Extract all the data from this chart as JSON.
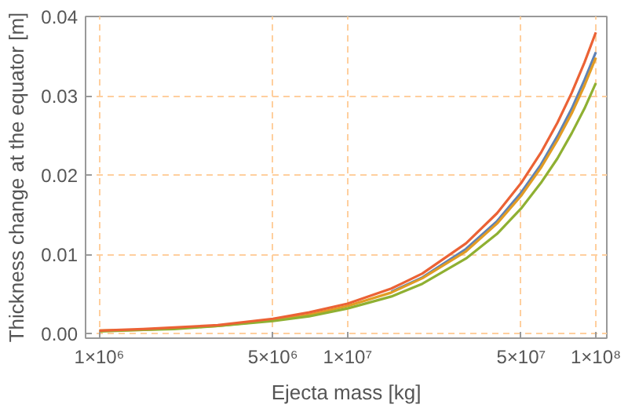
{
  "chart_data": {
    "type": "line",
    "xlabel": "Ejecta mass [kg]",
    "ylabel": "Thickness change at the equator [m]",
    "log": "x",
    "x": [
      1000000,
      1500000,
      2000000,
      3000000,
      5000000,
      7000000,
      10000000,
      15000000,
      20000000,
      30000000,
      40000000,
      50000000,
      60000000,
      70000000,
      80000000,
      90000000,
      100000000
    ],
    "series": [
      {
        "color": "#5e81b5",
        "values": [
          null,
          null,
          null,
          null,
          null,
          null,
          null,
          0.0053,
          0.0071,
          0.0107,
          0.0142,
          0.0178,
          0.0213,
          0.0249,
          0.0284,
          0.032,
          0.0355
        ]
      },
      {
        "color": "#e19c24",
        "values": [
          0.0004,
          0.0005,
          0.0007,
          0.001,
          0.0017,
          0.0024,
          0.0035,
          0.0052,
          0.007,
          0.0104,
          0.0139,
          0.0174,
          0.0209,
          0.0244,
          0.0278,
          0.0313,
          0.0348
        ]
      },
      {
        "color": "#8fb032",
        "values": [
          0.0003,
          0.0005,
          0.0006,
          0.001,
          0.0016,
          0.0022,
          0.0032,
          0.0047,
          0.0063,
          0.0095,
          0.0126,
          0.0158,
          0.019,
          0.0221,
          0.0253,
          0.0284,
          0.0316
        ]
      },
      {
        "color": "#eb6235",
        "values": [
          0.0004,
          0.0006,
          0.0008,
          0.0011,
          0.0019,
          0.0027,
          0.0038,
          0.0057,
          0.0076,
          0.0114,
          0.0152,
          0.019,
          0.0228,
          0.0266,
          0.0304,
          0.0342,
          0.038
        ]
      }
    ],
    "xlim": [
      880000,
      110700000
    ],
    "xticks": [
      {
        "value": 1000000,
        "label": "1×10⁶"
      },
      {
        "value": 5000000,
        "label": "5×10⁶"
      },
      {
        "value": 10000000,
        "label": "1×10⁷"
      },
      {
        "value": 50000000,
        "label": "5×10⁷"
      },
      {
        "value": 100000000,
        "label": "1×10⁸"
      }
    ],
    "ylim": [
      -0.00055,
      0.04
    ],
    "yticks": [
      {
        "value": 0,
        "label": "0.00"
      },
      {
        "value": 0.01,
        "label": "0.01"
      },
      {
        "value": 0.02,
        "label": "0.02"
      },
      {
        "value": 0.03,
        "label": "0.03"
      },
      {
        "value": 0.04,
        "label": "0.04"
      }
    ],
    "grid": true,
    "line_style": "solid"
  }
}
